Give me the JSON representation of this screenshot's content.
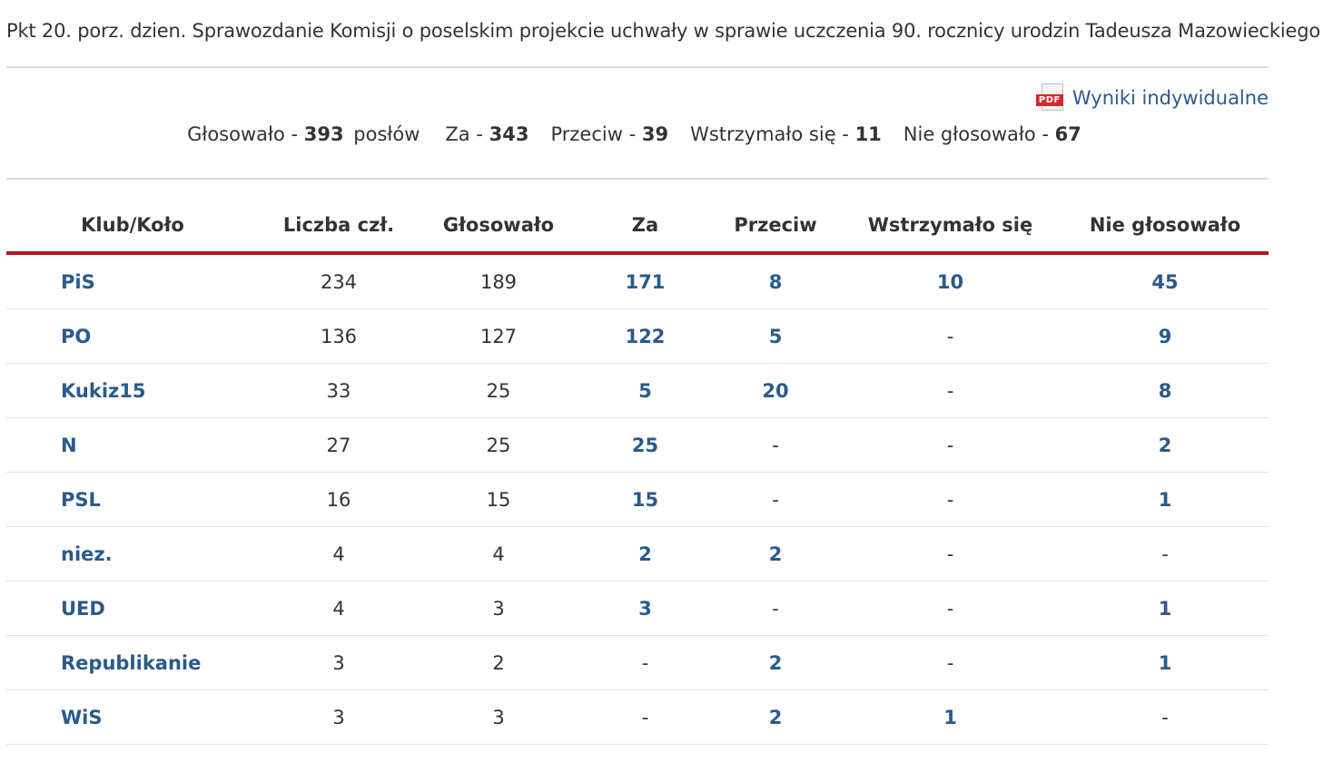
{
  "heading": "Pkt 20. porz. dzien. Sprawozdanie Komisji o poselskim projekcie uchwały w sprawie uczczenia 90. rocznicy urodzin Tadeusza Mazowieckiego",
  "pdf_link": {
    "label": "Wyniki indywidualne",
    "icon_text": "PDF",
    "icon": "pdf-icon"
  },
  "summary": {
    "voted_label": "Głosowało -",
    "voted": "393",
    "voted_suffix": "posłów",
    "za_label": "Za -",
    "za": "343",
    "przeciw_label": "Przeciw -",
    "przeciw": "39",
    "wstrzymalo_label": "Wstrzymało się -",
    "wstrzymalo": "11",
    "nie_label": "Nie głosowało -",
    "nie": "67"
  },
  "table": {
    "headers": [
      "Klub/Koło",
      "Liczba czł.",
      "Głosowało",
      "Za",
      "Przeciw",
      "Wstrzymało się",
      "Nie głosowało"
    ],
    "rows": [
      {
        "club": "PiS",
        "members": "234",
        "voted": "189",
        "za": "171",
        "przeciw": "8",
        "wstrzymalo": "10",
        "nie": "45"
      },
      {
        "club": "PO",
        "members": "136",
        "voted": "127",
        "za": "122",
        "przeciw": "5",
        "wstrzymalo": "-",
        "nie": "9"
      },
      {
        "club": "Kukiz15",
        "members": "33",
        "voted": "25",
        "za": "5",
        "przeciw": "20",
        "wstrzymalo": "-",
        "nie": "8"
      },
      {
        "club": "N",
        "members": "27",
        "voted": "25",
        "za": "25",
        "przeciw": "-",
        "wstrzymalo": "-",
        "nie": "2"
      },
      {
        "club": "PSL",
        "members": "16",
        "voted": "15",
        "za": "15",
        "przeciw": "-",
        "wstrzymalo": "-",
        "nie": "1"
      },
      {
        "club": "niez.",
        "members": "4",
        "voted": "4",
        "za": "2",
        "przeciw": "2",
        "wstrzymalo": "-",
        "nie": "-"
      },
      {
        "club": "UED",
        "members": "4",
        "voted": "3",
        "za": "3",
        "przeciw": "-",
        "wstrzymalo": "-",
        "nie": "1"
      },
      {
        "club": "Republikanie",
        "members": "3",
        "voted": "2",
        "za": "-",
        "przeciw": "2",
        "wstrzymalo": "-",
        "nie": "1"
      },
      {
        "club": "WiS",
        "members": "3",
        "voted": "3",
        "za": "-",
        "przeciw": "2",
        "wstrzymalo": "1",
        "nie": "-"
      }
    ]
  },
  "colors": {
    "link": "#2b5a8c",
    "header_rule": "#b3151f",
    "text": "#333333",
    "divider": "#dcdcdc",
    "pdf_tag": "#d42a2a"
  }
}
